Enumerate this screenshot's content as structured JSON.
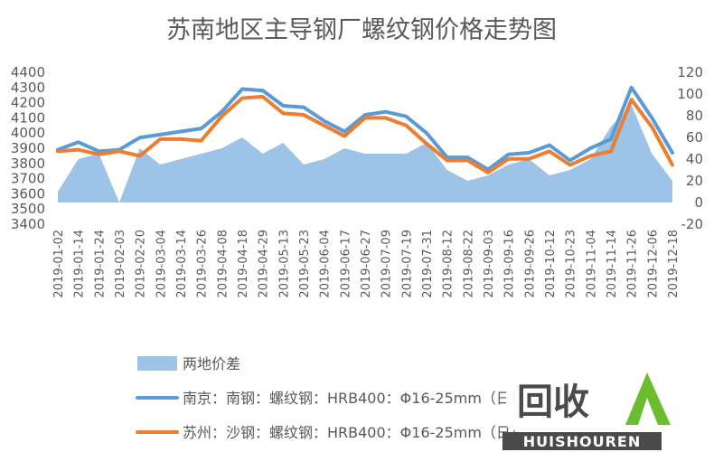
{
  "chart_data": {
    "type": "line",
    "title": "苏南地区主导钢厂螺纹钢价格走势图",
    "x_ticks": [
      "2019-01-02",
      "2019-01-14",
      "2019-01-24",
      "2019-02-03",
      "2019-02-20",
      "2019-03-04",
      "2019-03-14",
      "2019-03-26",
      "2019-04-08",
      "2019-04-18",
      "2019-04-29",
      "2019-05-13",
      "2019-05-23",
      "2019-06-04",
      "2019-06-17",
      "2019-06-27",
      "2019-07-09",
      "2019-07-19",
      "2019-07-31",
      "2019-08-12",
      "2019-08-22",
      "2019-09-03",
      "2019-09-16",
      "2019-09-26",
      "2019-10-12",
      "2019-10-23",
      "2019-11-04",
      "2019-11-14",
      "2019-11-26",
      "2019-12-06",
      "2019-12-18"
    ],
    "y_left": {
      "min": 3400,
      "max": 4400,
      "step": 100,
      "ticks": [
        "3400",
        "3500",
        "3600",
        "3700",
        "3800",
        "3900",
        "4000",
        "4100",
        "4200",
        "4300",
        "4400"
      ]
    },
    "y_right": {
      "min": -20,
      "max": 120,
      "step": 20,
      "ticks": [
        "-20",
        "0",
        "20",
        "40",
        "60",
        "80",
        "100",
        "120"
      ]
    },
    "series": [
      {
        "name": "两地价差",
        "type": "area",
        "axis": "right",
        "color": "#9DC3E6",
        "x_index": [
          0,
          1,
          2,
          3,
          4,
          5,
          6,
          7,
          8,
          9,
          10,
          11,
          12,
          13,
          14,
          15,
          16,
          17,
          18,
          19,
          20,
          21,
          22,
          23,
          24,
          25,
          26,
          27,
          28,
          29,
          30
        ],
        "values": [
          10,
          40,
          45,
          0,
          50,
          35,
          40,
          45,
          50,
          60,
          45,
          55,
          35,
          40,
          50,
          45,
          45,
          45,
          55,
          30,
          20,
          25,
          35,
          40,
          25,
          30,
          40,
          70,
          90,
          45,
          20
        ]
      },
      {
        "name": "南京：南钢：螺纹钢：HRB400：Φ16-25mm（日）",
        "type": "line",
        "axis": "left",
        "color": "#5B9BD5",
        "x_index": [
          0,
          1,
          2,
          3,
          4,
          5,
          6,
          7,
          8,
          9,
          10,
          11,
          12,
          13,
          14,
          15,
          16,
          17,
          18,
          19,
          20,
          21,
          22,
          23,
          24,
          25,
          26,
          27,
          28,
          29,
          30
        ],
        "values": [
          3890,
          3940,
          3880,
          3890,
          3970,
          3990,
          4010,
          4030,
          4140,
          4290,
          4280,
          4180,
          4170,
          4080,
          4010,
          4120,
          4140,
          4110,
          4000,
          3840,
          3840,
          3760,
          3860,
          3870,
          3920,
          3820,
          3900,
          3960,
          4300,
          4100,
          3870
        ]
      },
      {
        "name": "苏州：沙钢：螺纹钢：HRB400：Φ16-25mm（日）",
        "type": "line",
        "axis": "left",
        "color": "#ED7D31",
        "x_index": [
          0,
          1,
          2,
          3,
          4,
          5,
          6,
          7,
          8,
          9,
          10,
          11,
          12,
          13,
          14,
          15,
          16,
          17,
          18,
          19,
          20,
          21,
          22,
          23,
          24,
          25,
          26,
          27,
          28,
          29,
          30
        ],
        "values": [
          3880,
          3890,
          3860,
          3880,
          3850,
          3960,
          3960,
          3950,
          4110,
          4230,
          4240,
          4130,
          4120,
          4050,
          3980,
          4100,
          4100,
          4050,
          3930,
          3820,
          3820,
          3740,
          3830,
          3830,
          3880,
          3790,
          3850,
          3880,
          4220,
          4040,
          3790
        ]
      }
    ],
    "legend": "bottom",
    "grid": false
  },
  "watermark": {
    "cn": "回收",
    "en": "HUISHOUREN"
  }
}
